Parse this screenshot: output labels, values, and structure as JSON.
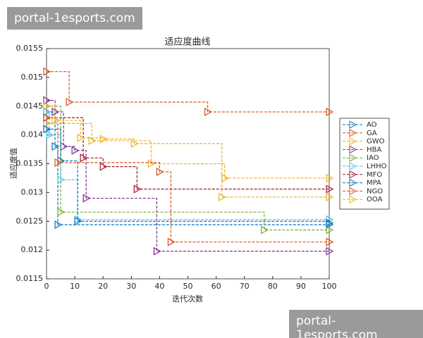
{
  "chart_data": {
    "type": "stairs",
    "title": "适应度曲线",
    "x_label": "迭代次数",
    "y_label": "适应度值",
    "xlim": [
      0,
      100
    ],
    "xticks": [
      0,
      10,
      20,
      30,
      40,
      50,
      60,
      70,
      80,
      90,
      100
    ],
    "ylim": [
      0.0115,
      0.0155
    ],
    "yticks": [
      0.0115,
      0.012,
      0.0125,
      0.013,
      0.0135,
      0.014,
      0.0145,
      0.015,
      0.0155
    ],
    "series": [
      {
        "name": "AO",
        "color": "#0072BD",
        "x": [
          0,
          3,
          4,
          100
        ],
        "values": [
          0.0144,
          0.0138,
          0.01244,
          0.01244
        ]
      },
      {
        "name": "GA",
        "color": "#D95319",
        "x": [
          0,
          8,
          57,
          100
        ],
        "values": [
          0.0151,
          0.01457,
          0.0144,
          0.0144
        ]
      },
      {
        "name": "GWO",
        "color": "#EDB120",
        "x": [
          0,
          16,
          37,
          63,
          100
        ],
        "values": [
          0.0142,
          0.0139,
          0.0135,
          0.01325,
          0.01325
        ]
      },
      {
        "name": "HBA",
        "color": "#7E2F8E",
        "x": [
          0,
          3,
          6,
          10,
          14,
          39,
          100
        ],
        "values": [
          0.0146,
          0.0144,
          0.0138,
          0.01373,
          0.0129,
          0.01198,
          0.01198
        ]
      },
      {
        "name": "IAO",
        "color": "#77AC30",
        "x": [
          0,
          5,
          77,
          100
        ],
        "values": [
          0.0145,
          0.01266,
          0.01235,
          0.01235
        ]
      },
      {
        "name": "LHHO",
        "color": "#4DBEEE",
        "x": [
          0,
          1,
          5,
          11,
          100
        ],
        "values": [
          0.0144,
          0.014,
          0.01322,
          0.01253,
          0.01253
        ]
      },
      {
        "name": "MFO",
        "color": "#A2142F",
        "x": [
          0,
          13,
          20,
          32,
          100
        ],
        "values": [
          0.0143,
          0.0136,
          0.01345,
          0.01306,
          0.01306
        ]
      },
      {
        "name": "MPA",
        "color": "#0072BD",
        "x": [
          0,
          5,
          11,
          100
        ],
        "values": [
          0.0141,
          0.01355,
          0.0125,
          0.01247
        ]
      },
      {
        "name": "NGO",
        "color": "#D95319",
        "x": [
          0,
          4,
          40,
          44,
          100
        ],
        "values": [
          0.0143,
          0.01352,
          0.01336,
          0.01214,
          0.01214
        ]
      },
      {
        "name": "OOA",
        "color": "#EDB120",
        "x": [
          0,
          3,
          12,
          20,
          31,
          62,
          100
        ],
        "values": [
          0.0145,
          0.01425,
          0.01395,
          0.01393,
          0.01385,
          0.01292,
          0.01292
        ]
      }
    ]
  },
  "watermarks": [
    "portal-1esports.com",
    "portal-1esports.com"
  ]
}
